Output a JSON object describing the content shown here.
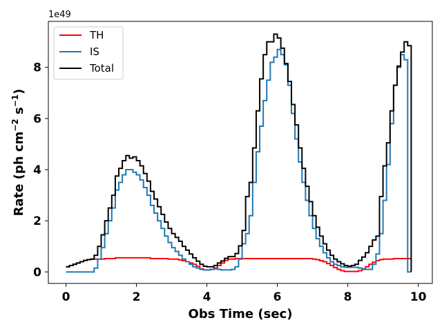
{
  "chart_data": {
    "type": "line",
    "step": true,
    "xlabel": "Obs Time (sec)",
    "ylabel_main": "Rate (ph cm",
    "ylabel_exp1": "−2",
    "ylabel_mid": " s",
    "ylabel_exp2": "−1",
    "ylabel_end": ")",
    "y_offset_label": "1e49",
    "xlim": [
      -0.5,
      10.4
    ],
    "ylim": [
      -0.45,
      9.8
    ],
    "xticks": [
      0,
      2,
      4,
      6,
      8,
      10
    ],
    "xtick_labels": [
      "0",
      "2",
      "4",
      "6",
      "8",
      "10"
    ],
    "yticks": [
      0,
      2,
      4,
      6,
      8
    ],
    "ytick_labels": [
      "0",
      "2",
      "4",
      "6",
      "8"
    ],
    "legend_position": "top-left",
    "x": [
      0.0,
      0.1,
      0.2,
      0.3,
      0.4,
      0.5,
      0.6,
      0.7,
      0.8,
      0.9,
      1.0,
      1.1,
      1.2,
      1.3,
      1.4,
      1.5,
      1.6,
      1.7,
      1.8,
      1.9,
      2.0,
      2.1,
      2.2,
      2.3,
      2.4,
      2.5,
      2.6,
      2.7,
      2.8,
      2.9,
      3.0,
      3.1,
      3.2,
      3.3,
      3.4,
      3.5,
      3.6,
      3.7,
      3.8,
      3.9,
      4.0,
      4.1,
      4.2,
      4.3,
      4.4,
      4.5,
      4.6,
      4.7,
      4.8,
      4.9,
      5.0,
      5.1,
      5.2,
      5.3,
      5.4,
      5.5,
      5.6,
      5.7,
      5.8,
      5.9,
      6.0,
      6.1,
      6.2,
      6.3,
      6.4,
      6.5,
      6.6,
      6.7,
      6.8,
      6.9,
      7.0,
      7.1,
      7.2,
      7.3,
      7.4,
      7.5,
      7.6,
      7.7,
      7.8,
      7.9,
      8.0,
      8.1,
      8.2,
      8.3,
      8.4,
      8.5,
      8.6,
      8.7,
      8.8,
      8.9,
      9.0,
      9.1,
      9.2,
      9.3,
      9.4,
      9.5,
      9.6,
      9.7,
      9.8
    ],
    "series": [
      {
        "name": "TH",
        "color": "#ff0000",
        "values": [
          0.2,
          0.25,
          0.3,
          0.35,
          0.4,
          0.45,
          0.48,
          0.5,
          0.5,
          0.5,
          0.5,
          0.52,
          0.52,
          0.52,
          0.55,
          0.55,
          0.55,
          0.55,
          0.55,
          0.55,
          0.55,
          0.55,
          0.55,
          0.55,
          0.52,
          0.52,
          0.52,
          0.52,
          0.52,
          0.5,
          0.5,
          0.5,
          0.47,
          0.44,
          0.4,
          0.35,
          0.3,
          0.22,
          0.12,
          0.08,
          0.08,
          0.1,
          0.15,
          0.25,
          0.35,
          0.45,
          0.5,
          0.5,
          0.52,
          0.52,
          0.52,
          0.52,
          0.52,
          0.52,
          0.52,
          0.52,
          0.52,
          0.52,
          0.52,
          0.52,
          0.52,
          0.52,
          0.52,
          0.52,
          0.52,
          0.52,
          0.52,
          0.52,
          0.52,
          0.52,
          0.5,
          0.48,
          0.44,
          0.4,
          0.33,
          0.25,
          0.17,
          0.1,
          0.05,
          0.02,
          0.02,
          0.02,
          0.02,
          0.05,
          0.1,
          0.2,
          0.3,
          0.38,
          0.44,
          0.48,
          0.5,
          0.5,
          0.5,
          0.52,
          0.52,
          0.52,
          0.52,
          0.52,
          0.52
        ]
      },
      {
        "name": "IS",
        "color": "#1f77b4",
        "values": [
          0.0,
          0.0,
          0.0,
          0.0,
          0.0,
          0.0,
          0.0,
          0.0,
          0.15,
          0.5,
          0.95,
          1.5,
          2.0,
          2.5,
          3.2,
          3.5,
          3.8,
          4.0,
          4.0,
          3.9,
          3.8,
          3.6,
          3.3,
          3.0,
          2.6,
          2.3,
          2.0,
          1.7,
          1.4,
          1.15,
          0.95,
          0.8,
          0.65,
          0.5,
          0.4,
          0.3,
          0.2,
          0.15,
          0.1,
          0.08,
          0.08,
          0.1,
          0.12,
          0.1,
          0.08,
          0.08,
          0.08,
          0.1,
          0.2,
          0.5,
          1.1,
          1.5,
          2.2,
          3.5,
          4.7,
          5.7,
          6.7,
          7.5,
          8.2,
          8.4,
          8.7,
          8.5,
          8.1,
          7.3,
          6.2,
          5.2,
          4.3,
          3.5,
          2.8,
          2.2,
          1.7,
          1.3,
          1.0,
          0.75,
          0.55,
          0.4,
          0.3,
          0.25,
          0.2,
          0.18,
          0.18,
          0.18,
          0.18,
          0.15,
          0.12,
          0.1,
          0.1,
          0.3,
          0.7,
          1.5,
          2.8,
          4.2,
          5.8,
          7.3,
          8.0,
          8.5,
          8.3,
          0.0,
          0.0
        ]
      },
      {
        "name": "Total",
        "color": "#000000",
        "values": [
          0.2,
          0.25,
          0.3,
          0.35,
          0.4,
          0.45,
          0.48,
          0.5,
          0.65,
          1.0,
          1.45,
          2.0,
          2.5,
          3.0,
          3.75,
          4.05,
          4.35,
          4.55,
          4.45,
          4.5,
          4.35,
          4.15,
          3.85,
          3.55,
          3.15,
          2.85,
          2.55,
          2.25,
          1.95,
          1.7,
          1.5,
          1.35,
          1.2,
          1.0,
          0.85,
          0.7,
          0.55,
          0.42,
          0.3,
          0.22,
          0.2,
          0.2,
          0.25,
          0.35,
          0.43,
          0.53,
          0.6,
          0.6,
          0.72,
          1.02,
          1.62,
          2.95,
          3.5,
          4.85,
          6.3,
          7.55,
          8.5,
          9.0,
          9.0,
          9.3,
          9.15,
          8.75,
          8.15,
          7.45,
          6.55,
          5.75,
          4.85,
          4.05,
          3.35,
          2.75,
          2.2,
          1.75,
          1.4,
          1.1,
          0.85,
          0.65,
          0.5,
          0.4,
          0.32,
          0.25,
          0.22,
          0.25,
          0.3,
          0.45,
          0.58,
          0.75,
          1.0,
          1.25,
          1.4,
          2.95,
          4.15,
          5.05,
          6.3,
          7.3,
          8.05,
          8.6,
          9.0,
          8.85,
          0.0
        ]
      }
    ]
  }
}
